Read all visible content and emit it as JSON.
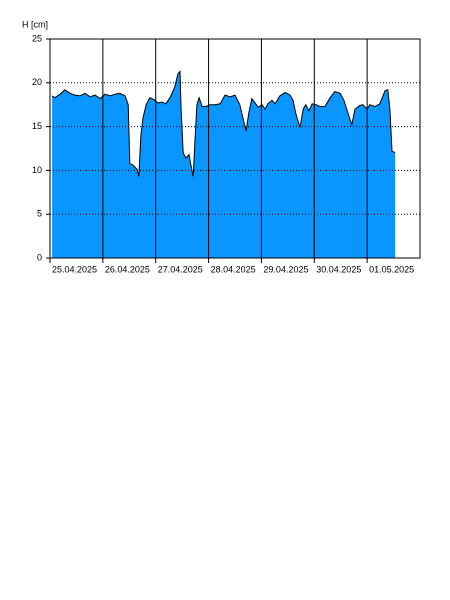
{
  "chart_data": {
    "type": "area",
    "y_label": "H [cm]",
    "color": "#0a96ff",
    "line_color": "#000000",
    "x": [
      0.04,
      0.09,
      0.19,
      0.28,
      0.38,
      0.47,
      0.57,
      0.66,
      0.76,
      0.85,
      0.95,
      1.04,
      1.14,
      1.23,
      1.32,
      1.42,
      1.48,
      1.51,
      1.57,
      1.65,
      1.68,
      1.72,
      1.76,
      1.82,
      1.89,
      1.99,
      2.04,
      2.12,
      2.19,
      2.27,
      2.36,
      2.42,
      2.46,
      2.48,
      2.52,
      2.57,
      2.63,
      2.67,
      2.71,
      2.74,
      2.78,
      2.82,
      2.88,
      2.95,
      3.03,
      3.12,
      3.22,
      3.31,
      3.41,
      3.5,
      3.59,
      3.65,
      3.71,
      3.76,
      3.82,
      3.88,
      3.94,
      4.01,
      4.07,
      4.12,
      4.2,
      4.26,
      4.35,
      4.45,
      4.54,
      4.6,
      4.65,
      4.73,
      4.79,
      4.84,
      4.9,
      4.96,
      5.03,
      5.11,
      5.2,
      5.3,
      5.39,
      5.49,
      5.56,
      5.64,
      5.71,
      5.77,
      5.86,
      5.92,
      6.0,
      6.05,
      6.15,
      6.24,
      6.34,
      6.39,
      6.43,
      6.47,
      6.53
    ],
    "values": [
      18.5,
      18.3,
      18.7,
      19.2,
      18.8,
      18.6,
      18.5,
      18.8,
      18.4,
      18.6,
      18.2,
      18.7,
      18.5,
      18.7,
      18.8,
      18.5,
      17.5,
      10.8,
      10.6,
      10.1,
      9.3,
      14,
      16,
      17.5,
      18.3,
      18.0,
      17.7,
      17.8,
      17.6,
      18.3,
      19.5,
      21.0,
      21.3,
      17,
      12,
      11.4,
      11.8,
      10.5,
      9.3,
      13,
      17.5,
      18.3,
      17.3,
      17.3,
      17.5,
      17.5,
      17.6,
      18.6,
      18.4,
      18.6,
      17.5,
      16,
      14.5,
      16.5,
      18.2,
      17.7,
      17.2,
      17.5,
      17.0,
      17.6,
      18.0,
      17.6,
      18.5,
      18.9,
      18.6,
      18.0,
      16.5,
      14.9,
      17.0,
      17.5,
      16.8,
      17.6,
      17.5,
      17.3,
      17.3,
      18.3,
      19.0,
      18.8,
      18.0,
      16.5,
      15.2,
      17.0,
      17.4,
      17.5,
      17.0,
      17.5,
      17.3,
      17.6,
      19.1,
      19.2,
      17,
      12.2,
      12.0
    ],
    "xlim": [
      0,
      7
    ],
    "xticks": [
      {
        "value": 0,
        "label": "25.04.2025"
      },
      {
        "value": 1,
        "label": "26.04.2025"
      },
      {
        "value": 2,
        "label": "27.04.2025"
      },
      {
        "value": 3,
        "label": "28.04.2025"
      },
      {
        "value": 4,
        "label": "29.04.2025"
      },
      {
        "value": 5,
        "label": "30.04.2025"
      },
      {
        "value": 6,
        "label": "01.05.2025"
      }
    ],
    "ylim": [
      0,
      25
    ],
    "yticks": [
      0,
      5,
      10,
      15,
      20,
      25
    ],
    "grid": true
  }
}
